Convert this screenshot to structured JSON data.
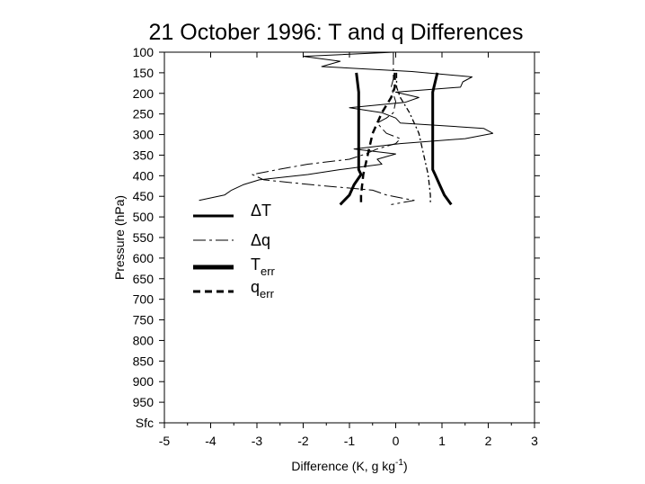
{
  "chart_data": {
    "type": "line",
    "title": "21 October 1996: T and q Differences",
    "xlabel": "Difference (K, g kg",
    "xlabel_sup": "-1",
    "xlabel_close": ")",
    "ylabel": "Pressure (hPa)",
    "xlim": [
      -5,
      3
    ],
    "x_ticks": [
      "-5",
      "-4",
      "-3",
      "-2",
      "-1",
      "0",
      "1",
      "2",
      "3"
    ],
    "y_ticks": [
      "100",
      "150",
      "200",
      "250",
      "300",
      "350",
      "400",
      "450",
      "500",
      "550",
      "600",
      "650",
      "700",
      "750",
      "800",
      "850",
      "900",
      "950",
      "Sfc"
    ],
    "y_levels": [
      100,
      150,
      200,
      250,
      300,
      350,
      400,
      450,
      500,
      550,
      600,
      650,
      700,
      750,
      800,
      850,
      900,
      950,
      1000
    ],
    "y_reversed": true,
    "grid": false,
    "legend_position": "left",
    "series": [
      {
        "name": "ΔT",
        "style": "thin-solid",
        "points": [
          [
            -0.03,
            100
          ],
          [
            -2.0,
            110
          ],
          [
            -1.2,
            122
          ],
          [
            -1.6,
            135
          ],
          [
            0.35,
            147
          ],
          [
            1.65,
            160
          ],
          [
            1.45,
            172
          ],
          [
            1.4,
            185
          ],
          [
            0.0,
            197
          ],
          [
            0.5,
            210
          ],
          [
            0.2,
            222
          ],
          [
            -1.0,
            235
          ],
          [
            -0.3,
            247
          ],
          [
            0.0,
            260
          ],
          [
            0.1,
            272
          ],
          [
            1.9,
            285
          ],
          [
            2.1,
            297
          ],
          [
            1.5,
            310
          ],
          [
            0.1,
            322
          ],
          [
            -0.9,
            335
          ],
          [
            0.0,
            347
          ],
          [
            -0.4,
            360
          ],
          [
            -0.3,
            372
          ],
          [
            -1.2,
            385
          ],
          [
            -1.9,
            397
          ],
          [
            -2.95,
            410
          ],
          [
            -3.3,
            422
          ],
          [
            -3.55,
            435
          ],
          [
            -3.7,
            447
          ],
          [
            -4.25,
            460
          ]
        ]
      },
      {
        "name": "Δq",
        "style": "long-dash",
        "points": [
          [
            -0.05,
            100
          ],
          [
            -0.05,
            130
          ],
          [
            -0.05,
            165
          ],
          [
            -0.1,
            185
          ],
          [
            0.0,
            220
          ],
          [
            -0.05,
            247
          ],
          [
            -0.2,
            260
          ],
          [
            -0.4,
            272
          ],
          [
            -0.3,
            285
          ],
          [
            -0.2,
            297
          ],
          [
            0.1,
            310
          ],
          [
            0.0,
            322
          ],
          [
            -0.4,
            335
          ],
          [
            -0.65,
            347
          ],
          [
            -1.0,
            360
          ],
          [
            -1.9,
            372
          ],
          [
            -2.55,
            385
          ],
          [
            -3.1,
            397
          ],
          [
            -2.85,
            410
          ],
          [
            -1.8,
            422
          ],
          [
            -0.5,
            435
          ],
          [
            -0.2,
            447
          ],
          [
            0.4,
            460
          ],
          [
            -0.1,
            470
          ]
        ]
      },
      {
        "name": "T",
        "name_sub": "err",
        "style": "thick-solid",
        "points": [
          [
            -0.85,
            150
          ],
          [
            -0.8,
            197
          ],
          [
            -0.8,
            222
          ],
          [
            -0.8,
            247
          ],
          [
            -0.8,
            297
          ],
          [
            -0.8,
            347
          ],
          [
            -0.8,
            385
          ],
          [
            -0.75,
            397
          ],
          [
            -0.9,
            422
          ],
          [
            -1.0,
            447
          ],
          [
            -1.2,
            470
          ]
        ]
      },
      {
        "name": "q",
        "name_sub": "err",
        "style": "thick-dash",
        "points": [
          [
            -0.02,
            150
          ],
          [
            -0.02,
            185
          ],
          [
            -0.1,
            210
          ],
          [
            -0.3,
            247
          ],
          [
            -0.5,
            297
          ],
          [
            -0.6,
            347
          ],
          [
            -0.7,
            397
          ],
          [
            -0.75,
            447
          ],
          [
            -0.75,
            470
          ]
        ]
      },
      {
        "name": "",
        "style": "thin-dash-dot",
        "points": [
          [
            0.02,
            150
          ],
          [
            0.02,
            185
          ],
          [
            0.1,
            210
          ],
          [
            0.3,
            247
          ],
          [
            0.5,
            297
          ],
          [
            0.6,
            347
          ],
          [
            0.7,
            397
          ],
          [
            0.75,
            447
          ],
          [
            0.75,
            470
          ]
        ]
      },
      {
        "name": "",
        "style": "thick-solid",
        "points": [
          [
            0.9,
            150
          ],
          [
            0.8,
            197
          ],
          [
            0.8,
            247
          ],
          [
            0.8,
            297
          ],
          [
            0.8,
            347
          ],
          [
            0.8,
            385
          ],
          [
            0.85,
            397
          ],
          [
            0.95,
            422
          ],
          [
            1.05,
            447
          ],
          [
            1.2,
            470
          ]
        ]
      }
    ]
  }
}
